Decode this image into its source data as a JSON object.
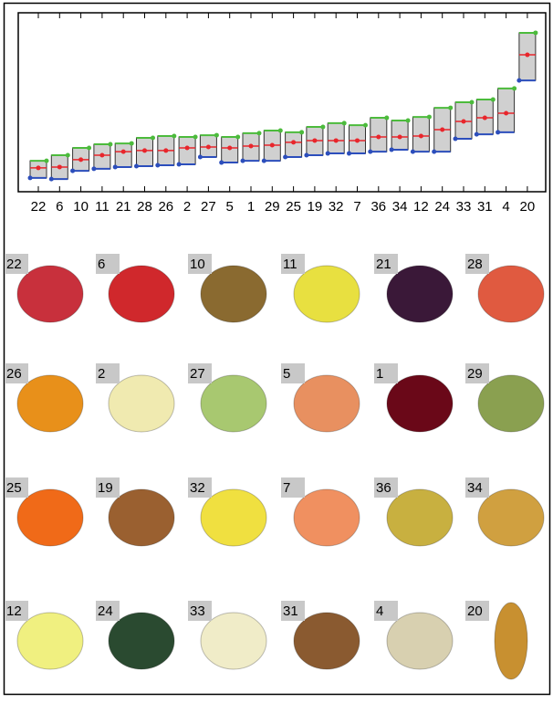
{
  "chart_data": {
    "type": "box",
    "categories": [
      "22",
      "6",
      "10",
      "11",
      "21",
      "28",
      "26",
      "2",
      "27",
      "5",
      "1",
      "29",
      "25",
      "19",
      "32",
      "7",
      "36",
      "34",
      "12",
      "24",
      "33",
      "31",
      "4",
      "20"
    ],
    "box_high": [
      17.3,
      20.4,
      24.5,
      26.5,
      27,
      30.1,
      31.1,
      30.6,
      31.6,
      30.6,
      32.7,
      34.2,
      33.2,
      36.2,
      38.3,
      37.2,
      41.3,
      39.8,
      41.8,
      46.9,
      50,
      51.5,
      57.7,
      88.8
    ],
    "median": [
      13.3,
      13.8,
      17.9,
      20.4,
      22.4,
      23,
      23,
      24.5,
      25,
      24.5,
      25.5,
      26,
      27.6,
      28.6,
      28.6,
      28.6,
      30.6,
      30.6,
      31.1,
      34.7,
      39.3,
      41.3,
      43.9,
      76.5
    ],
    "box_low": [
      7.7,
      7.1,
      11.7,
      12.8,
      13.8,
      14.3,
      14.8,
      15.3,
      19.4,
      16.3,
      17.3,
      17.3,
      19.4,
      20.4,
      21.4,
      21.4,
      22.4,
      23.5,
      22.4,
      22.4,
      29.6,
      32.1,
      33.2,
      62.2
    ],
    "ylim": [
      0,
      100
    ],
    "colors": {
      "high": "#4cbb3c",
      "median": "#e8262c",
      "low": "#2c4ebc",
      "box": "#d0d0d0"
    }
  },
  "gallery": {
    "labels": [
      "22",
      "6",
      "10",
      "11",
      "21",
      "28",
      "26",
      "2",
      "27",
      "5",
      "1",
      "29",
      "25",
      "19",
      "32",
      "7",
      "36",
      "34",
      "12",
      "24",
      "33",
      "31",
      "4",
      "20"
    ]
  }
}
